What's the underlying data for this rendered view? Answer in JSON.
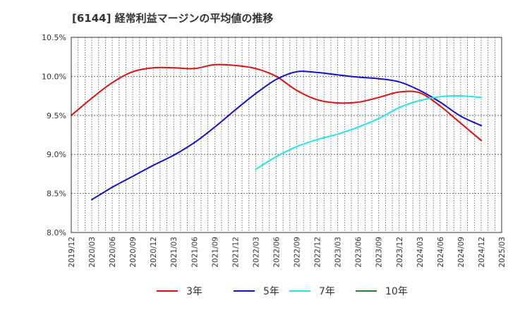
{
  "chart_data": {
    "type": "line",
    "title": "[6144]  経常利益マージンの平均値の推移",
    "xlabel": "",
    "ylabel": "",
    "x_ticks": [
      "2019/12",
      "2020/03",
      "2020/06",
      "2020/09",
      "2020/12",
      "2021/03",
      "2021/06",
      "2021/09",
      "2021/12",
      "2022/03",
      "2022/06",
      "2022/09",
      "2022/12",
      "2023/03",
      "2023/06",
      "2023/09",
      "2023/12",
      "2024/03",
      "2024/06",
      "2024/09",
      "2024/12",
      "2025/03"
    ],
    "y_ticks": [
      "8.0%",
      "8.5%",
      "9.0%",
      "9.5%",
      "10.0%",
      "10.5%"
    ],
    "ylim": [
      8.0,
      10.5
    ],
    "grid": true,
    "legend_position": "bottom",
    "series": [
      {
        "name": "3年",
        "color": "#dd1111",
        "points": [
          [
            "2019/12",
            9.5
          ],
          [
            "2020/03",
            9.72
          ],
          [
            "2020/06",
            9.92
          ],
          [
            "2020/09",
            10.06
          ],
          [
            "2020/12",
            10.11
          ],
          [
            "2021/03",
            10.11
          ],
          [
            "2021/06",
            10.1
          ],
          [
            "2021/09",
            10.15
          ],
          [
            "2021/12",
            10.14
          ],
          [
            "2022/03",
            10.1
          ],
          [
            "2022/06",
            10.0
          ],
          [
            "2022/09",
            9.82
          ],
          [
            "2022/12",
            9.7
          ],
          [
            "2023/03",
            9.66
          ],
          [
            "2023/06",
            9.67
          ],
          [
            "2023/09",
            9.73
          ],
          [
            "2023/12",
            9.8
          ],
          [
            "2024/03",
            9.79
          ],
          [
            "2024/06",
            9.62
          ],
          [
            "2024/09",
            9.4
          ],
          [
            "2024/12",
            9.18
          ]
        ]
      },
      {
        "name": "5年",
        "color": "#1111cc",
        "points": [
          [
            "2020/03",
            8.42
          ],
          [
            "2020/06",
            8.58
          ],
          [
            "2020/09",
            8.72
          ],
          [
            "2020/12",
            8.86
          ],
          [
            "2021/03",
            8.99
          ],
          [
            "2021/06",
            9.15
          ],
          [
            "2021/09",
            9.35
          ],
          [
            "2021/12",
            9.57
          ],
          [
            "2022/03",
            9.78
          ],
          [
            "2022/06",
            9.96
          ],
          [
            "2022/09",
            10.06
          ],
          [
            "2022/12",
            10.05
          ],
          [
            "2023/03",
            10.02
          ],
          [
            "2023/06",
            9.99
          ],
          [
            "2023/09",
            9.97
          ],
          [
            "2023/12",
            9.93
          ],
          [
            "2024/03",
            9.82
          ],
          [
            "2024/06",
            9.67
          ],
          [
            "2024/09",
            9.49
          ],
          [
            "2024/12",
            9.37
          ]
        ]
      },
      {
        "name": "7年",
        "color": "#22e6e6",
        "points": [
          [
            "2022/03",
            8.81
          ],
          [
            "2022/06",
            8.97
          ],
          [
            "2022/09",
            9.1
          ],
          [
            "2022/12",
            9.19
          ],
          [
            "2023/03",
            9.26
          ],
          [
            "2023/06",
            9.35
          ],
          [
            "2023/09",
            9.46
          ],
          [
            "2023/12",
            9.6
          ],
          [
            "2024/03",
            9.69
          ],
          [
            "2024/06",
            9.74
          ],
          [
            "2024/09",
            9.75
          ],
          [
            "2024/12",
            9.73
          ]
        ]
      },
      {
        "name": "10年",
        "color": "#228822",
        "points": []
      }
    ]
  }
}
